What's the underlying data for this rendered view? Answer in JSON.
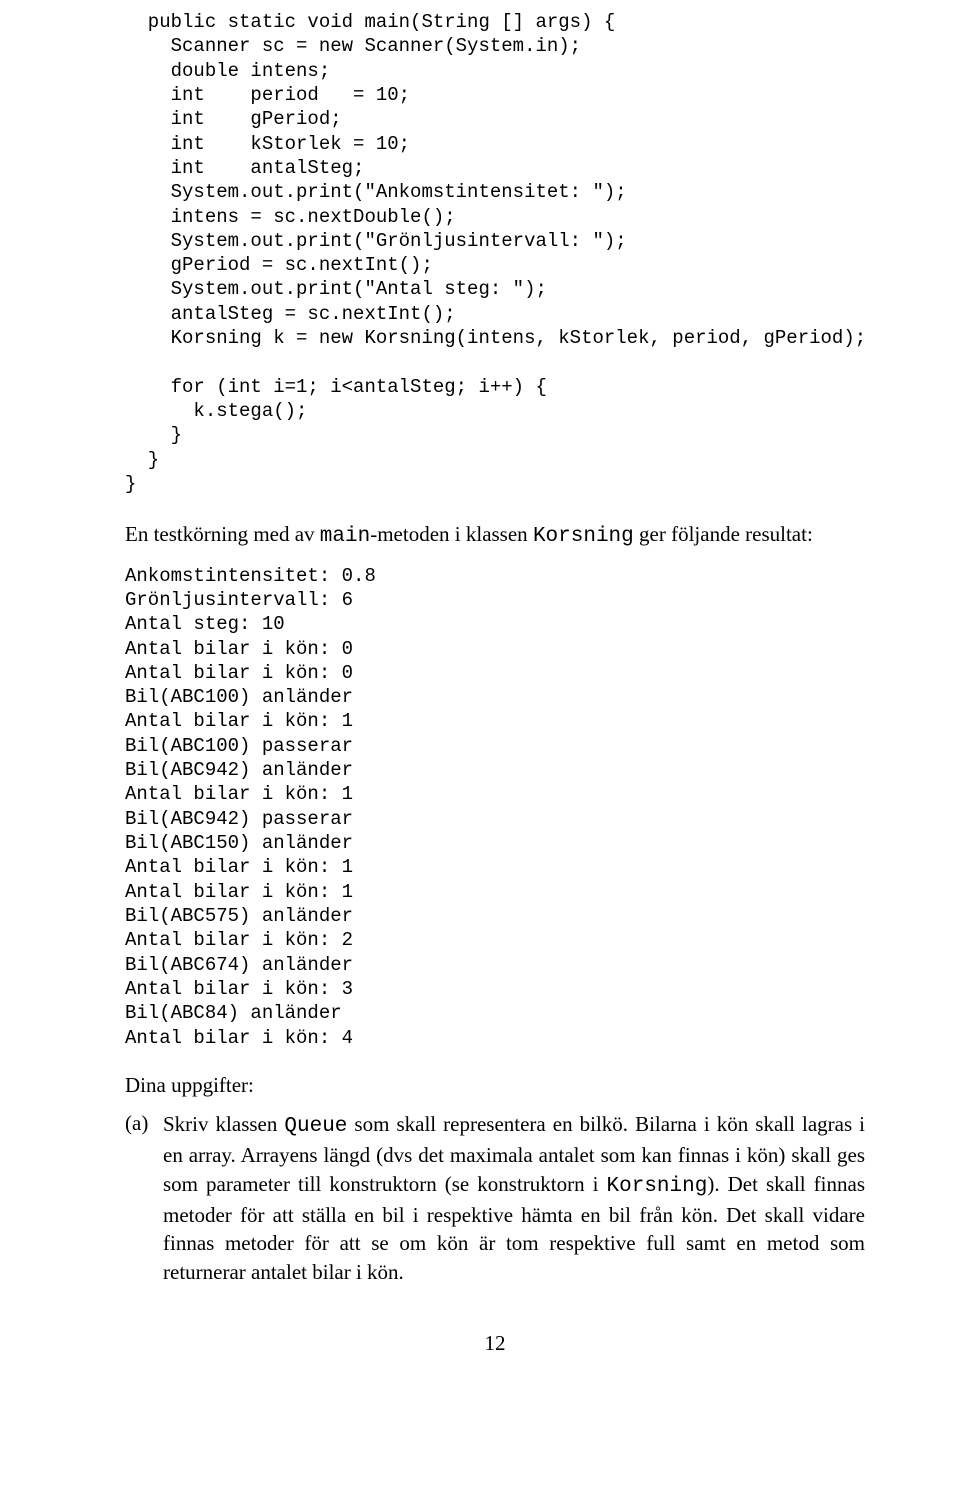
{
  "code": {
    "l01": "  public static void main(String [] args) {",
    "l02": "    Scanner sc = new Scanner(System.in);",
    "l03": "    double intens;",
    "l04": "    int    period   = 10;",
    "l05": "    int    gPeriod;",
    "l06": "    int    kStorlek = 10;",
    "l07": "    int    antalSteg;",
    "l08": "    System.out.print(\"Ankomstintensitet: \");",
    "l09": "    intens = sc.nextDouble();",
    "l10": "    System.out.print(\"Grönljusintervall: \");",
    "l11": "    gPeriod = sc.nextInt();",
    "l12": "    System.out.print(\"Antal steg: \");",
    "l13": "    antalSteg = sc.nextInt();",
    "l14": "    Korsning k = new Korsning(intens, kStorlek, period, gPeriod);",
    "l15": "",
    "l16": "    for (int i=1; i<antalSteg; i++) {",
    "l17": "      k.stega();",
    "l18": "    }",
    "l19": "  }",
    "l20": "}"
  },
  "para1": {
    "pre": "En testkörning med av ",
    "m1": "main",
    "mid1": "-metoden i klassen ",
    "m2": "Korsning",
    "post": " ger följande resultat:"
  },
  "output": {
    "l01": "Ankomstintensitet: 0.8",
    "l02": "Grönljusintervall: 6",
    "l03": "Antal steg: 10",
    "l04": "Antal bilar i kön: 0",
    "l05": "Antal bilar i kön: 0",
    "l06": "Bil(ABC100) anländer",
    "l07": "Antal bilar i kön: 1",
    "l08": "Bil(ABC100) passerar",
    "l09": "Bil(ABC942) anländer",
    "l10": "Antal bilar i kön: 1",
    "l11": "Bil(ABC942) passerar",
    "l12": "Bil(ABC150) anländer",
    "l13": "Antal bilar i kön: 1",
    "l14": "Antal bilar i kön: 1",
    "l15": "Bil(ABC575) anländer",
    "l16": "Antal bilar i kön: 2",
    "l17": "Bil(ABC674) anländer",
    "l18": "Antal bilar i kön: 3",
    "l19": "Bil(ABC84) anländer",
    "l20": "Antal bilar i kön: 4"
  },
  "heading": "Dina uppgifter:",
  "task": {
    "label": "(a)",
    "t0": "Skriv klassen ",
    "m1": "Queue",
    "t1": " som skall representera en bilkö. Bilarna i kön skall lagras i en array. Arrayens längd (dvs det maximala antalet som kan finnas i kön) skall ges som parameter till konstruktorn (se konstruktorn i ",
    "m2": "Korsning",
    "t2": "). Det skall finnas metoder för att ställa en bil i respektive hämta en bil från kön. Det skall vidare finnas metoder för att se om kön är tom respektive full samt en metod som returnerar antalet bilar i kön."
  },
  "pagenum": "12"
}
